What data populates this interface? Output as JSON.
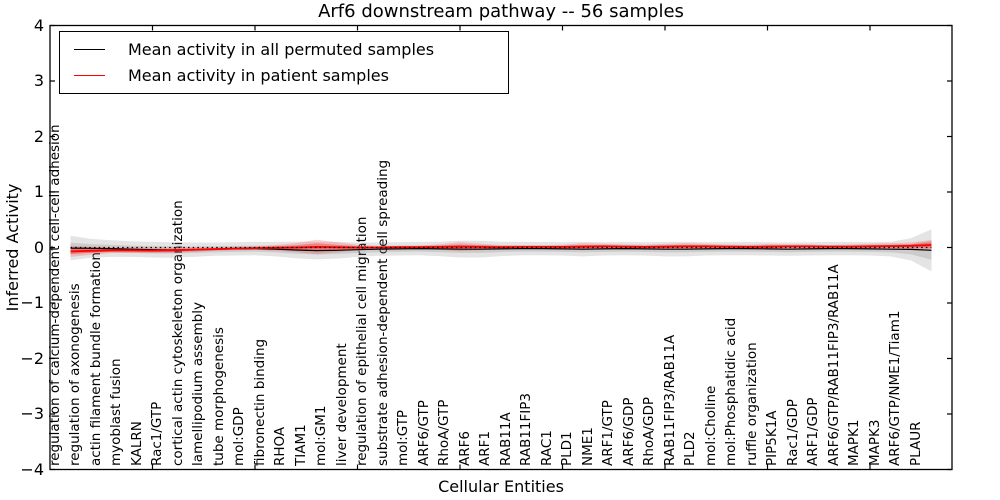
{
  "chart_data": {
    "type": "line",
    "title": "Arf6 downstream pathway -- 56 samples",
    "xlabel": "Cellular Entities",
    "ylabel": "Inferred Activity",
    "ylim": [
      -4,
      4
    ],
    "yticks": [
      4,
      3,
      2,
      1,
      0,
      -1,
      -2,
      -3,
      -4
    ],
    "ytick_labels": [
      "4",
      "3",
      "2",
      "1",
      "0",
      "−1",
      "−2",
      "−3",
      "−4"
    ],
    "xtick_positions": [
      5,
      10,
      15,
      20,
      25,
      30,
      35,
      40
    ],
    "grid": false,
    "legend_position": "upper left",
    "zero_line": {
      "y": 0,
      "style": "dotted",
      "color": "#000000"
    },
    "categories": [
      "regulation of calcium-dependent cell-cell adhesion",
      "regulation of axonogenesis",
      "actin filament bundle formation",
      "myoblast fusion",
      "KALRN",
      "Rac1/GTP",
      "cortical actin cytoskeleton organization",
      "lamellipodium assembly",
      "tube morphogenesis",
      "mol:GDP",
      "fibronectin binding",
      "RHOA",
      "TIAM1",
      "mol:GM1",
      "liver development",
      "regulation of epithelial cell migration",
      "substrate adhesion-dependent cell spreading",
      "mol:GTP",
      "ARF6/GTP",
      "RhoA/GTP",
      "ARF6",
      "ARF1",
      "RAB11A",
      "RAB11FIP3",
      "RAC1",
      "PLD1",
      "NME1",
      "ARF1/GTP",
      "ARF6/GDP",
      "RhoA/GDP",
      "RAB11FIP3/RAB11A",
      "PLD2",
      "mol:Choline",
      "mol:Phosphatidic acid",
      "ruffle organization",
      "PIP5K1A",
      "Rac1/GDP",
      "ARF1/GDP",
      "ARF6/GTP/RAB11FIP3/RAB11A",
      "MAPK1",
      "MAPK3",
      "ARF6/GTP/NME1/Tiam1",
      "PLAUR"
    ],
    "series": [
      {
        "name": "Mean activity in all permuted samples",
        "color": "#000000",
        "values": [
          -0.01,
          -0.015,
          -0.02,
          -0.03,
          -0.04,
          -0.045,
          -0.04,
          -0.03,
          -0.025,
          -0.02,
          -0.03,
          -0.045,
          -0.055,
          -0.05,
          -0.04,
          -0.03,
          -0.025,
          -0.02,
          -0.025,
          -0.03,
          -0.03,
          -0.025,
          -0.02,
          -0.02,
          -0.025,
          -0.03,
          -0.025,
          -0.02,
          -0.025,
          -0.03,
          -0.03,
          -0.025,
          -0.02,
          -0.02,
          -0.025,
          -0.03,
          -0.025,
          -0.02,
          -0.02,
          -0.025,
          -0.03,
          -0.035,
          -0.05
        ]
      },
      {
        "name": "Mean activity in patient samples",
        "color": "#ff0000",
        "values": [
          -0.07,
          -0.06,
          -0.05,
          -0.05,
          -0.055,
          -0.05,
          -0.04,
          -0.03,
          -0.02,
          -0.01,
          -0.005,
          0.0,
          0.01,
          0.005,
          0.0,
          0.0,
          0.005,
          0.005,
          0.01,
          0.015,
          0.01,
          0.005,
          0.01,
          0.01,
          0.01,
          0.015,
          0.02,
          0.015,
          0.01,
          0.015,
          0.02,
          0.02,
          0.015,
          0.01,
          0.015,
          0.02,
          0.02,
          0.015,
          0.015,
          0.02,
          0.025,
          0.03,
          0.045
        ]
      }
    ],
    "bands": [
      {
        "name": "permuted samples spread",
        "color": "#808080",
        "around_series": 0,
        "half_widths": [
          0.22,
          0.17,
          0.15,
          0.14,
          0.14,
          0.14,
          0.13,
          0.12,
          0.12,
          0.12,
          0.13,
          0.15,
          0.16,
          0.15,
          0.13,
          0.12,
          0.12,
          0.12,
          0.13,
          0.15,
          0.15,
          0.13,
          0.12,
          0.12,
          0.12,
          0.13,
          0.12,
          0.12,
          0.12,
          0.13,
          0.13,
          0.12,
          0.12,
          0.12,
          0.12,
          0.12,
          0.12,
          0.12,
          0.12,
          0.12,
          0.13,
          0.2,
          0.38
        ]
      },
      {
        "name": "patient samples spread",
        "color": "#ff0000",
        "around_series": 1,
        "half_widths": [
          0.1,
          0.07,
          0.05,
          0.05,
          0.05,
          0.05,
          0.04,
          0.03,
          0.03,
          0.03,
          0.05,
          0.08,
          0.13,
          0.09,
          0.05,
          0.03,
          0.03,
          0.03,
          0.05,
          0.08,
          0.06,
          0.04,
          0.03,
          0.03,
          0.04,
          0.06,
          0.05,
          0.04,
          0.04,
          0.05,
          0.06,
          0.05,
          0.04,
          0.04,
          0.05,
          0.04,
          0.04,
          0.03,
          0.04,
          0.05,
          0.05,
          0.06,
          0.09
        ]
      }
    ]
  }
}
